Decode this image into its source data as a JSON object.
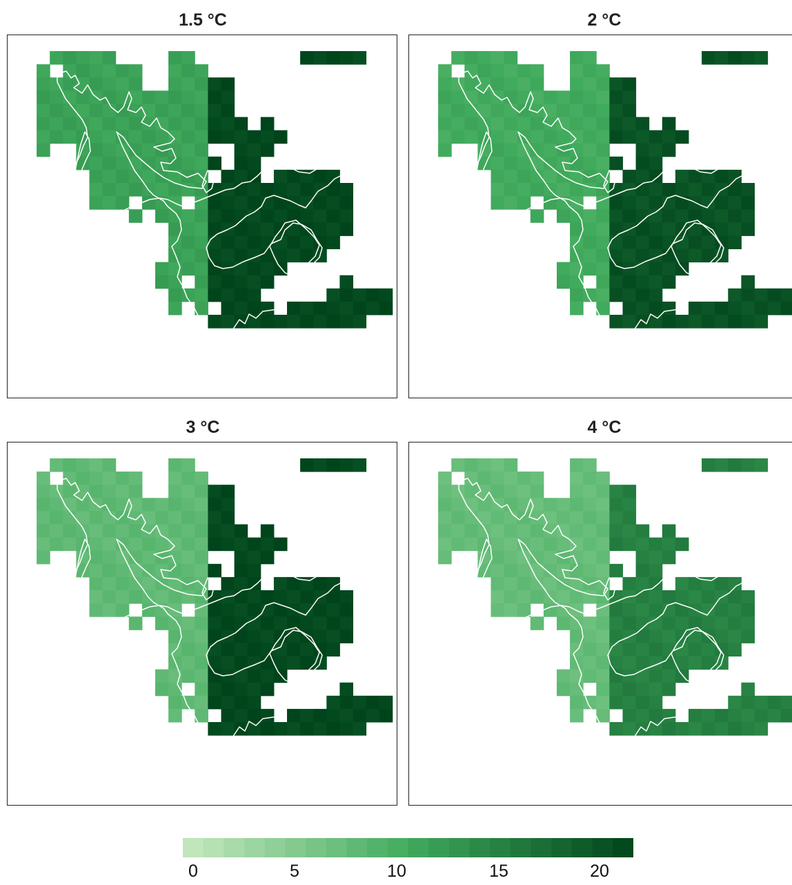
{
  "panels": [
    {
      "title": "1.5 °C",
      "west": 12.0,
      "east": 21.5
    },
    {
      "title": "2 °C",
      "west": 11.0,
      "east": 20.5
    },
    {
      "title": "3 °C",
      "west": 8.5,
      "east": 21.5
    },
    {
      "title": "4 °C",
      "west": 8.0,
      "east": 15.5
    }
  ],
  "colorbar": {
    "min": 0,
    "max": 22,
    "steps": 22,
    "ticks": [
      "0",
      "5",
      "10",
      "15",
      "20"
    ],
    "tick_values": [
      0,
      5,
      10,
      15,
      20
    ],
    "color_low": "#c7e9c0",
    "color_mid": "#41ab5d",
    "color_high": "#00441b"
  },
  "colors": {
    "outline": "#ffffff",
    "frame": "#222222",
    "background": "#ffffff"
  }
}
